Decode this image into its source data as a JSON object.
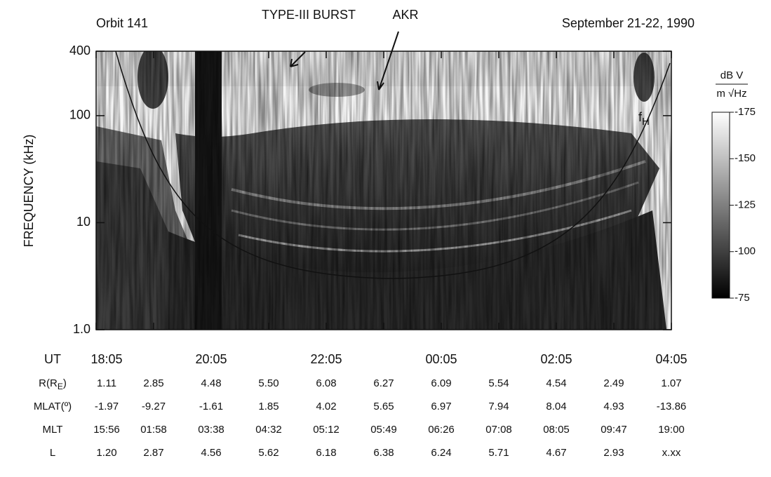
{
  "chart_data": {
    "type": "spectrogram",
    "orbit": "Orbit 141",
    "date": "September 21-22, 1990",
    "annotations": [
      "TYPE-III BURST",
      "AKR"
    ],
    "curve_label": {
      "main": "f",
      "sub": "H"
    },
    "ylabel": "FREQUENCY (kHz)",
    "log_y": true,
    "ylim": [
      1,
      400
    ],
    "yticks": [
      {
        "value": 1,
        "label": "1.0"
      },
      10,
      100,
      400
    ],
    "colorbar": {
      "numerator": "dB V",
      "denominator": "m √Hz",
      "lim": [
        -175,
        -75
      ],
      "ticks": [
        -175,
        -150,
        -125,
        -100,
        -75
      ]
    },
    "rows": [
      {
        "label": [
          "UT"
        ],
        "values": [
          "18:05",
          null,
          "20:05",
          null,
          "22:05",
          null,
          "00:05",
          null,
          "02:05",
          null,
          "04:05"
        ]
      },
      {
        "label": [
          "R(R",
          "E",
          ")"
        ],
        "values": [
          "1.11",
          "2.85",
          "4.48",
          "5.50",
          "6.08",
          "6.27",
          "6.09",
          "5.54",
          "4.54",
          "2.49",
          "1.07"
        ]
      },
      {
        "label": [
          "MLAT(º)"
        ],
        "values": [
          "-1.97",
          "-9.27",
          "-1.61",
          "1.85",
          "4.02",
          "5.65",
          "6.97",
          "7.94",
          "8.04",
          "4.93",
          "-13.86"
        ]
      },
      {
        "label": [
          "MLT"
        ],
        "values": [
          "15:56",
          "01:58",
          "03:38",
          "04:32",
          "05:12",
          "05:49",
          "06:26",
          "07:08",
          "08:05",
          "09:47",
          "19:00"
        ]
      },
      {
        "label": [
          "L"
        ],
        "values": [
          "1.20",
          "2.87",
          "4.56",
          "5.62",
          "6.18",
          "6.38",
          "6.24",
          "5.71",
          "4.67",
          "2.93",
          "x.xx"
        ]
      }
    ]
  }
}
